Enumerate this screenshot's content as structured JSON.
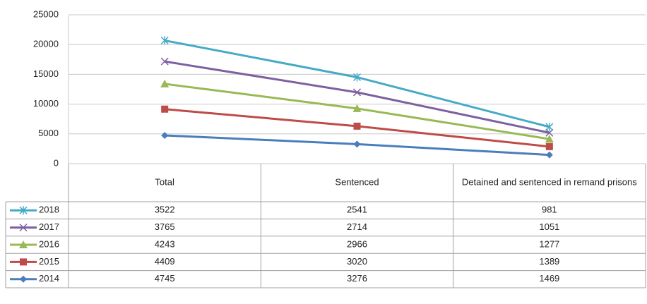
{
  "chart_data": {
    "type": "line",
    "stacked": true,
    "grid": true,
    "categories": [
      "Total",
      "Sentenced",
      "Detained and sentenced in remand prisons"
    ],
    "series": [
      {
        "name": "2014",
        "color": "#4a7ebb",
        "marker": "diamond",
        "values": [
          4745,
          3276,
          1469
        ]
      },
      {
        "name": "2015",
        "color": "#be4b48",
        "marker": "square",
        "values": [
          4409,
          3020,
          1389
        ]
      },
      {
        "name": "2016",
        "color": "#98b954",
        "marker": "triangle",
        "values": [
          4243,
          2966,
          1277
        ]
      },
      {
        "name": "2017",
        "color": "#7d60a0",
        "marker": "x",
        "values": [
          3765,
          2714,
          1051
        ]
      },
      {
        "name": "2018",
        "color": "#46aac5",
        "marker": "star",
        "values": [
          3522,
          2541,
          981
        ]
      }
    ],
    "ylim": [
      0,
      25000
    ],
    "yticks": [
      0,
      5000,
      10000,
      15000,
      20000,
      25000
    ]
  }
}
